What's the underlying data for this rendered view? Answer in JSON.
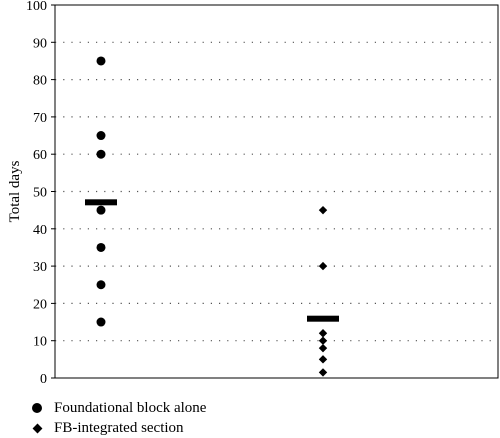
{
  "chart_data": {
    "type": "scatter",
    "ylabel": "Total days",
    "ylim": [
      0,
      100
    ],
    "yticks": [
      0,
      10,
      20,
      30,
      40,
      50,
      60,
      70,
      80,
      90,
      100
    ],
    "grid": true,
    "legend_placement": "bottom-left",
    "series": [
      {
        "name": "Foundational block alone",
        "marker": "circle",
        "values": [
          85,
          65,
          60,
          45,
          35,
          25,
          15
        ],
        "mean": 47.1
      },
      {
        "name": "FB-integrated section",
        "marker": "diamond",
        "values": [
          45,
          30,
          12,
          10,
          8,
          5,
          1.5
        ],
        "mean": 15.9
      }
    ]
  },
  "colors": {
    "marks": "#000000",
    "grid": "#555555",
    "background": "#ffffff"
  }
}
